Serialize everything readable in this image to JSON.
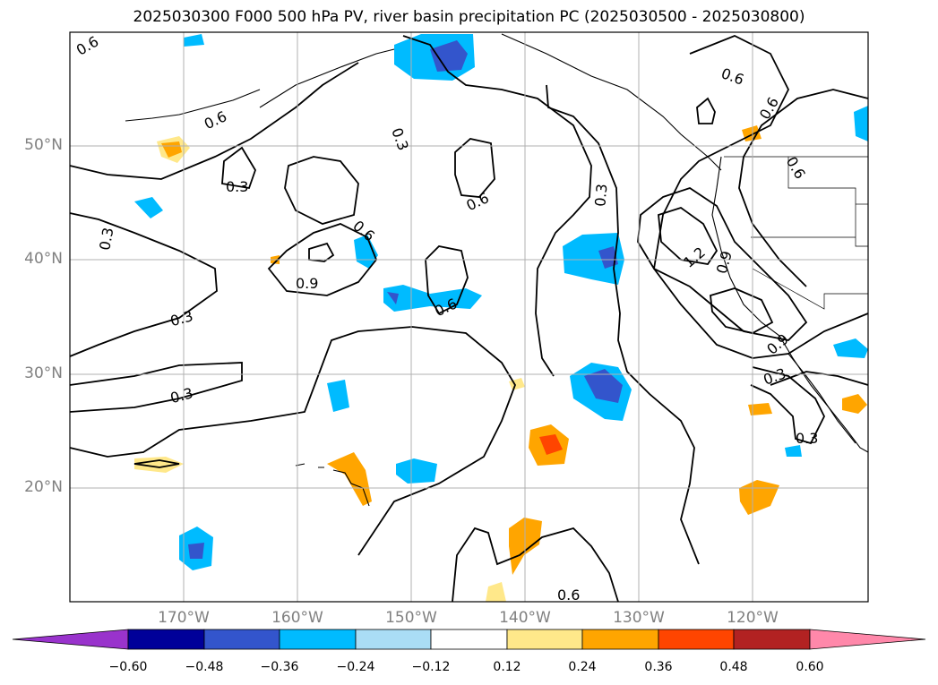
{
  "title": "2025030300 F000 500 hPa PV, river basin precipitation PC (2025030500 - 2025030800)",
  "lat_labels": [
    "50°N",
    "40°N",
    "30°N",
    "20°N"
  ],
  "lon_labels": [
    "170°W",
    "160°W",
    "150°W",
    "140°W",
    "130°W",
    "120°W"
  ],
  "contour_labels": [
    "0.6",
    "0.6",
    "0.3",
    "0.3",
    "0.6",
    "0.6",
    "0.9",
    "0.3",
    "0.3",
    "0.3",
    "0.6",
    "0.3",
    "0.6",
    "0.6",
    "0.9",
    "1.2",
    "0.9",
    "0.3",
    "0.3",
    "0.6",
    "0.6"
  ],
  "colorbar": {
    "ticks": [
      "−0.60",
      "−0.48",
      "−0.36",
      "−0.24",
      "−0.12",
      "0.12",
      "0.24",
      "0.36",
      "0.48",
      "0.60"
    ],
    "colors": [
      "#9933cc",
      "#000099",
      "#3355cc",
      "#00bbff",
      "#aaddf5",
      "#ffffff",
      "#ffe88a",
      "#ffa500",
      "#ff4500",
      "#b22222",
      "#ff88aa"
    ]
  },
  "colors": {
    "grid": "#b0b0b0",
    "contour": "#000000",
    "tick_text": "#808080"
  }
}
